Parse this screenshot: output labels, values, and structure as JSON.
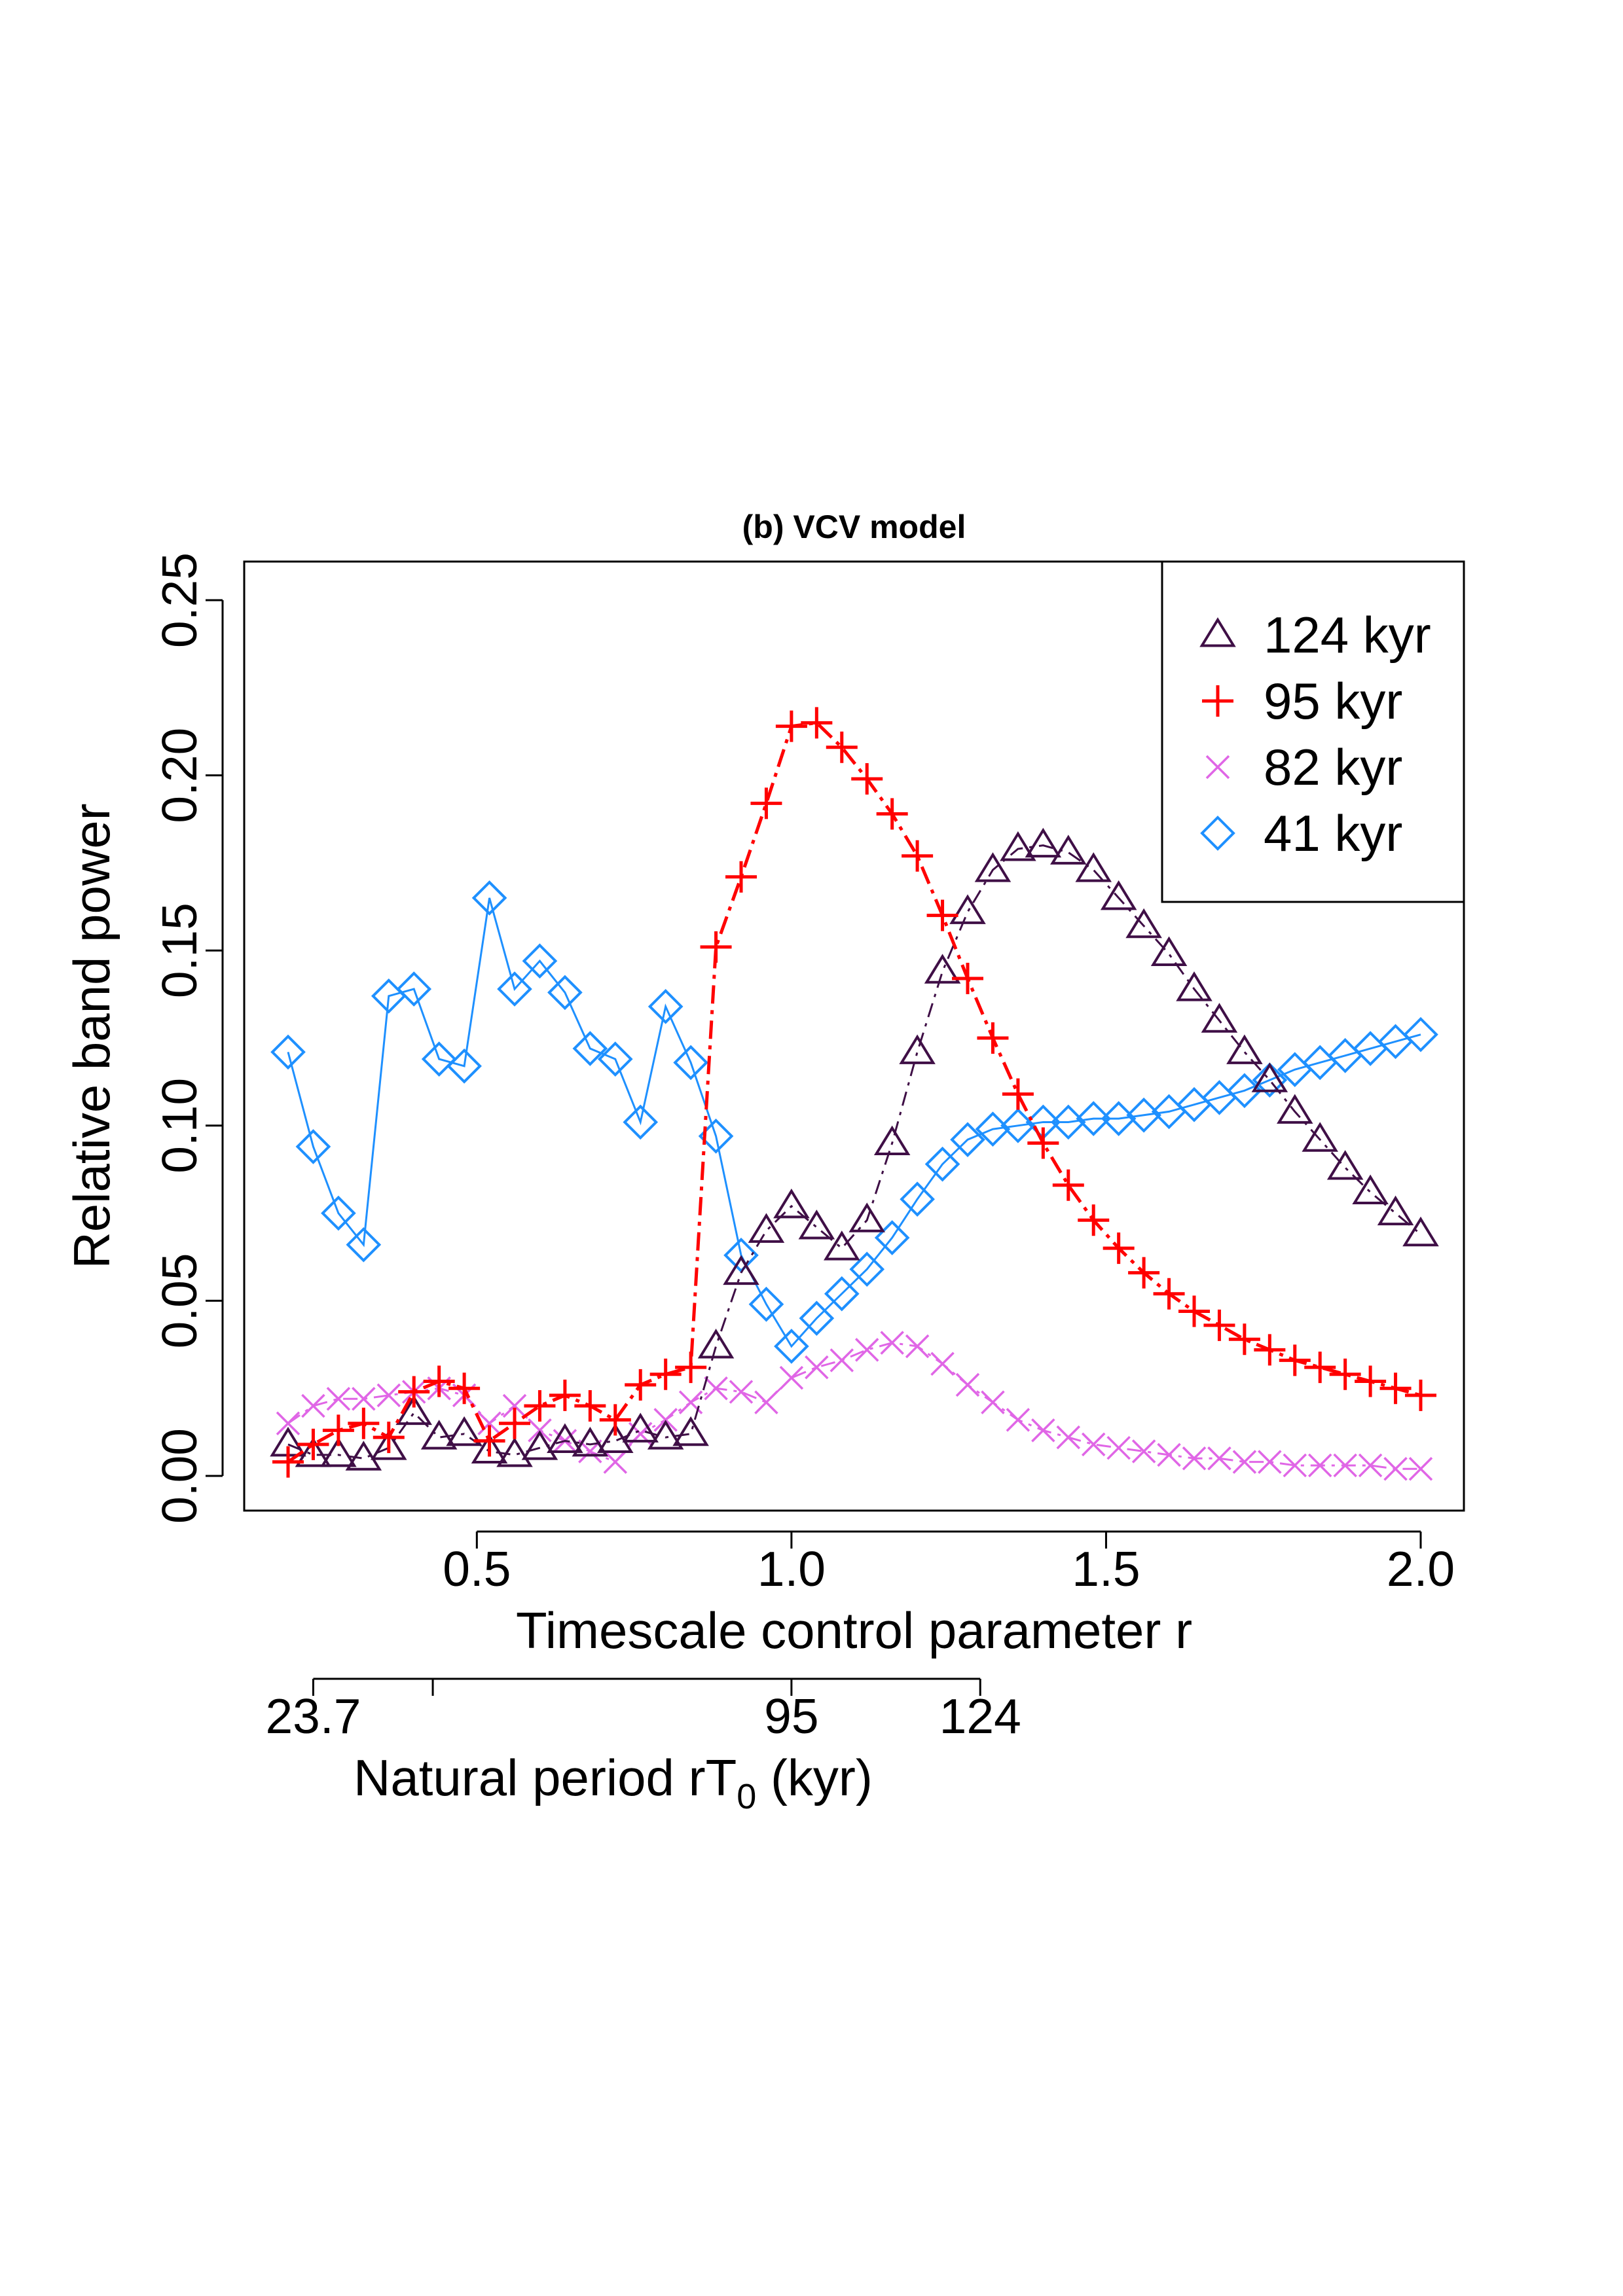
{
  "chart_data": {
    "type": "line",
    "title": "(b) VCV model",
    "xlabel": "Timescale control parameter r",
    "ylabel": "Relative band power",
    "xlim": [
      0.2,
      2.0
    ],
    "ylim": [
      0.0,
      0.25
    ],
    "xticks": [
      0.5,
      1.0,
      1.5,
      2.0
    ],
    "xtick_labels": [
      "0.5",
      "1.0",
      "1.5",
      "2.0"
    ],
    "yticks": [
      0.0,
      0.05,
      0.1,
      0.15,
      0.2,
      0.25
    ],
    "ytick_labels": [
      "0.00",
      "0.05",
      "0.10",
      "0.15",
      "0.20",
      "0.25"
    ],
    "grid": false,
    "legend_position": "top-right",
    "secondary_axis": {
      "label_main": "Natural period rT",
      "label_sub": "0",
      "label_suffix": " (kyr)",
      "ticks_r": [
        0.24,
        0.43,
        1.0,
        1.3
      ],
      "tick_labels": [
        "23.7",
        "",
        "95",
        "124"
      ]
    },
    "x": [
      0.2,
      0.24,
      0.28,
      0.32,
      0.36,
      0.4,
      0.44,
      0.48,
      0.52,
      0.56,
      0.6,
      0.64,
      0.68,
      0.72,
      0.76,
      0.8,
      0.84,
      0.88,
      0.92,
      0.96,
      1.0,
      1.04,
      1.08,
      1.12,
      1.16,
      1.2,
      1.24,
      1.28,
      1.32,
      1.36,
      1.4,
      1.44,
      1.48,
      1.52,
      1.56,
      1.6,
      1.64,
      1.68,
      1.72,
      1.76,
      1.8,
      1.84,
      1.88,
      1.92,
      1.96,
      2.0
    ],
    "series": [
      {
        "name": "124 kyr",
        "color": "#3f0f46",
        "marker": "triangle",
        "line": "dashed",
        "values": [
          0.009,
          0.006,
          0.006,
          0.005,
          0.008,
          0.018,
          0.011,
          0.012,
          0.007,
          0.006,
          0.008,
          0.01,
          0.009,
          0.01,
          0.013,
          0.011,
          0.012,
          0.037,
          0.058,
          0.07,
          0.077,
          0.071,
          0.065,
          0.073,
          0.095,
          0.121,
          0.144,
          0.161,
          0.173,
          0.179,
          0.18,
          0.178,
          0.173,
          0.165,
          0.157,
          0.149,
          0.139,
          0.13,
          0.121,
          0.113,
          0.104,
          0.096,
          0.088,
          0.081,
          0.075,
          0.069
        ]
      },
      {
        "name": "95 kyr",
        "color": "#ff0000",
        "marker": "plus",
        "line": "dashed",
        "values": [
          0.004,
          0.009,
          0.013,
          0.015,
          0.011,
          0.024,
          0.027,
          0.025,
          0.01,
          0.015,
          0.02,
          0.023,
          0.02,
          0.016,
          0.026,
          0.029,
          0.031,
          0.151,
          0.171,
          0.192,
          0.214,
          0.215,
          0.208,
          0.199,
          0.189,
          0.177,
          0.16,
          0.142,
          0.125,
          0.109,
          0.095,
          0.083,
          0.073,
          0.065,
          0.058,
          0.052,
          0.047,
          0.043,
          0.039,
          0.036,
          0.033,
          0.031,
          0.029,
          0.027,
          0.025,
          0.023
        ]
      },
      {
        "name": "82 kyr",
        "color": "#e066e6",
        "marker": "cross",
        "line": "dashed",
        "values": [
          0.015,
          0.02,
          0.022,
          0.022,
          0.023,
          0.024,
          0.025,
          0.023,
          0.015,
          0.02,
          0.013,
          0.01,
          0.007,
          0.004,
          0.012,
          0.016,
          0.021,
          0.025,
          0.024,
          0.021,
          0.028,
          0.031,
          0.033,
          0.036,
          0.038,
          0.037,
          0.032,
          0.026,
          0.021,
          0.016,
          0.013,
          0.011,
          0.009,
          0.008,
          0.007,
          0.006,
          0.005,
          0.005,
          0.004,
          0.004,
          0.003,
          0.003,
          0.003,
          0.003,
          0.002,
          0.002
        ]
      },
      {
        "name": "41 kyr",
        "color": "#1e90ff",
        "marker": "diamond",
        "line": "solid",
        "values": [
          0.121,
          0.094,
          0.075,
          0.066,
          0.137,
          0.139,
          0.119,
          0.117,
          0.165,
          0.139,
          0.147,
          0.138,
          0.122,
          0.119,
          0.101,
          0.134,
          0.118,
          0.097,
          0.063,
          0.049,
          0.037,
          0.045,
          0.052,
          0.059,
          0.068,
          0.079,
          0.089,
          0.096,
          0.099,
          0.1,
          0.101,
          0.101,
          0.102,
          0.102,
          0.103,
          0.104,
          0.106,
          0.108,
          0.11,
          0.113,
          0.116,
          0.118,
          0.12,
          0.122,
          0.124,
          0.126
        ]
      }
    ]
  }
}
